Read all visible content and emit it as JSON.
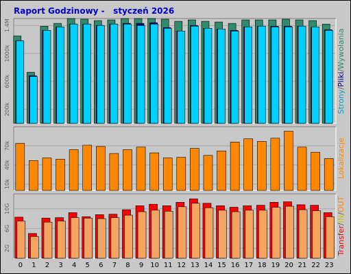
{
  "title": "Raport Godzinowy -   styczeń 2026",
  "colors": {
    "pages_hits": "#2e8b6e",
    "files": "#000080",
    "visits": "#00d0ff",
    "sites": "#ff8800",
    "transfer": "#ff0000",
    "in": "#ffff00",
    "out": "#f4a460"
  },
  "chart_data": [
    {
      "type": "bar",
      "categories": [
        "0",
        "1",
        "2",
        "3",
        "4",
        "5",
        "6",
        "7",
        "8",
        "9",
        "10",
        "11",
        "12",
        "13",
        "14",
        "15",
        "16",
        "17",
        "18",
        "19",
        "20",
        "21",
        "22",
        "23"
      ],
      "ylim": [
        0,
        1500000
      ],
      "yticks": [
        {
          "value": 200000,
          "label": "200k"
        },
        {
          "value": 600000,
          "label": "600k"
        },
        {
          "value": 1000000,
          "label": "1000k"
        },
        {
          "value": 1400000,
          "label": "1.4M"
        }
      ],
      "legend": [
        {
          "text": "Strony",
          "color": "#00a0c0"
        },
        {
          "text": "/",
          "color": "#606060"
        },
        {
          "text": "Pliki",
          "color": "#000080"
        },
        {
          "text": "/",
          "color": "#606060"
        },
        {
          "text": "Wywołania",
          "color": "#2e8b6e"
        }
      ],
      "series": [
        {
          "values": [
            1250000,
            730000,
            1390000,
            1430000,
            1500000,
            1490000,
            1470000,
            1480000,
            1500000,
            1500000,
            1500000,
            1490000,
            1460000,
            1480000,
            1460000,
            1450000,
            1430000,
            1480000,
            1480000,
            1480000,
            1490000,
            1480000,
            1470000,
            1420000
          ]
        },
        {
          "values": [
            1180000,
            680000,
            1330000,
            1380000,
            1420000,
            1420000,
            1400000,
            1420000,
            1430000,
            1430000,
            1440000,
            1370000,
            1320000,
            1400000,
            1360000,
            1350000,
            1330000,
            1380000,
            1390000,
            1390000,
            1390000,
            1390000,
            1370000,
            1340000
          ]
        },
        {
          "values": [
            1180000,
            670000,
            1330000,
            1380000,
            1420000,
            1420000,
            1400000,
            1420000,
            1420000,
            1400000,
            1420000,
            1360000,
            1320000,
            1390000,
            1360000,
            1350000,
            1320000,
            1380000,
            1390000,
            1380000,
            1380000,
            1390000,
            1380000,
            1330000
          ]
        }
      ]
    },
    {
      "type": "bar",
      "categories": [
        "0",
        "1",
        "2",
        "3",
        "4",
        "5",
        "6",
        "7",
        "8",
        "9",
        "10",
        "11",
        "12",
        "13",
        "14",
        "15",
        "16",
        "17",
        "18",
        "19",
        "20",
        "21",
        "22",
        "23"
      ],
      "ylim": [
        0,
        100000
      ],
      "yticks": [
        {
          "value": 10000,
          "label": "10k"
        },
        {
          "value": 40000,
          "label": "40k"
        },
        {
          "value": 70000,
          "label": "70k"
        }
      ],
      "legend": [
        {
          "text": "Lokalizacje",
          "color": "#ff8800"
        }
      ],
      "series": [
        {
          "values": [
            74000,
            47000,
            51000,
            49000,
            64000,
            71000,
            69000,
            58000,
            64000,
            68000,
            59000,
            51000,
            52000,
            66000,
            55000,
            62000,
            76000,
            81000,
            77000,
            82000,
            93000,
            68000,
            60000,
            50000
          ]
        }
      ]
    },
    {
      "type": "bar",
      "categories": [
        "0",
        "1",
        "2",
        "3",
        "4",
        "5",
        "6",
        "7",
        "8",
        "9",
        "10",
        "11",
        "12",
        "13",
        "14",
        "15",
        "16",
        "17",
        "18",
        "19",
        "20",
        "21",
        "22",
        "23"
      ],
      "ylim": [
        0,
        13000000000
      ],
      "yticks": [
        {
          "value": 2000000000,
          "label": "2G"
        },
        {
          "value": 6000000000,
          "label": "6G"
        },
        {
          "value": 10000000000,
          "label": "10G"
        }
      ],
      "legend": [
        {
          "text": "Transfer",
          "color": "#ff0000"
        },
        {
          "text": "/",
          "color": "#606060"
        },
        {
          "text": "IN",
          "color": "#c8c800"
        },
        {
          "text": "/",
          "color": "#606060"
        },
        {
          "text": "OUT",
          "color": "#ff8800"
        }
      ],
      "series": [
        {
          "values": [
            8300000000,
            5000000000,
            8100000000,
            8200000000,
            9200000000,
            8400000000,
            8800000000,
            8900000000,
            9800000000,
            10600000000,
            10900000000,
            10600000000,
            11300000000,
            12000000000,
            11100000000,
            10600000000,
            10300000000,
            10600000000,
            10700000000,
            11300000000,
            11400000000,
            10800000000,
            10700000000,
            9200000000
          ]
        },
        {
          "values": [
            0,
            0,
            0,
            0,
            0,
            0,
            0,
            0,
            0,
            0,
            0,
            0,
            0,
            0,
            0,
            0,
            0,
            0,
            0,
            0,
            0,
            0,
            0,
            0
          ]
        },
        {
          "values": [
            7500000000,
            4400000000,
            7300000000,
            7500000000,
            8200000000,
            8100000000,
            8000000000,
            8200000000,
            8700000000,
            9400000000,
            9700000000,
            9500000000,
            10400000000,
            11100000000,
            10200000000,
            9700000000,
            9400000000,
            9700000000,
            9700000000,
            10300000000,
            10500000000,
            9800000000,
            9600000000,
            8400000000
          ]
        }
      ]
    }
  ]
}
